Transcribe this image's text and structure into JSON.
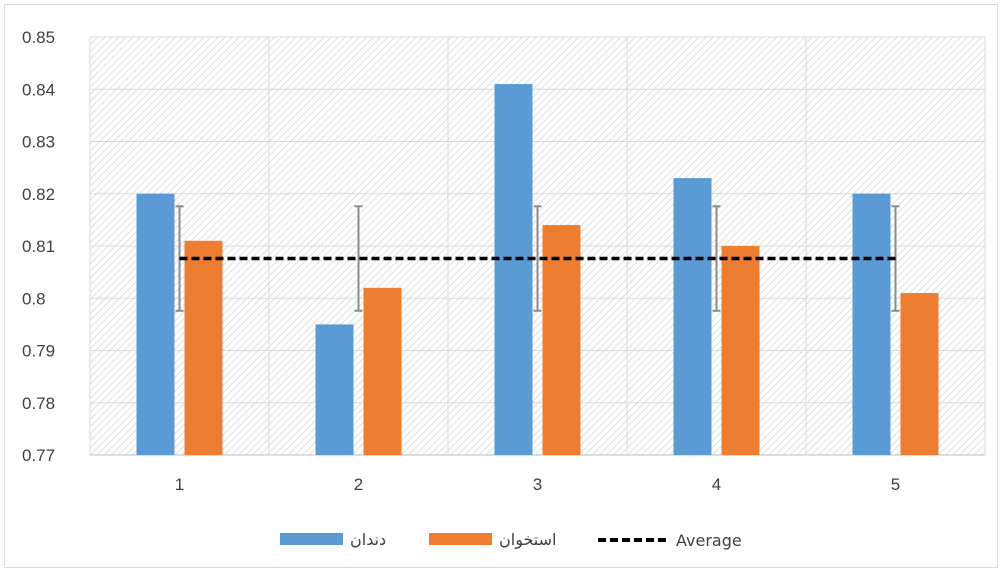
{
  "chart_data": {
    "type": "bar",
    "categories": [
      "1",
      "2",
      "3",
      "4",
      "5"
    ],
    "series": [
      {
        "name": "دندان",
        "values": [
          0.82,
          0.795,
          0.841,
          0.823,
          0.82
        ],
        "color": "#5b9bd5"
      },
      {
        "name": "استخوان",
        "values": [
          0.811,
          0.802,
          0.814,
          0.81,
          0.801
        ],
        "color": "#ed7d31"
      }
    ],
    "average": {
      "name": "Average",
      "value": 0.8076,
      "error_low": 0.7976,
      "error_high": 0.8176,
      "color": "#000000"
    },
    "ylim": [
      0.77,
      0.85
    ],
    "yticks": [
      "0.77",
      "0.78",
      "0.79",
      "0.8",
      "0.81",
      "0.82",
      "0.83",
      "0.84",
      "0.85"
    ],
    "ytick_values": [
      0.77,
      0.78,
      0.79,
      0.8,
      0.81,
      0.82,
      0.83,
      0.84,
      0.85
    ],
    "grid": true,
    "plot_background": "hatched",
    "legend_position": "bottom",
    "title": "",
    "xlabel": "",
    "ylabel": ""
  }
}
